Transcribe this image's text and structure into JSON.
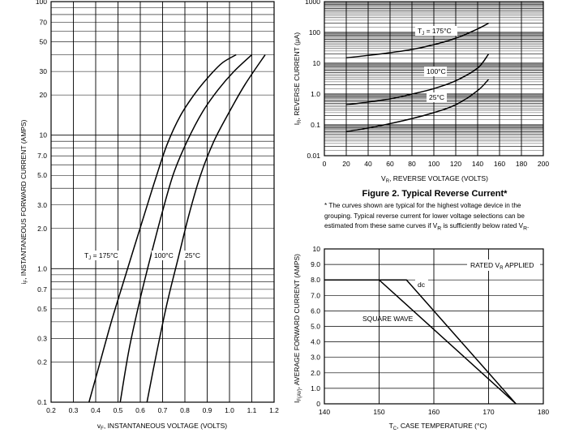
{
  "chart_data": [
    {
      "type": "line",
      "scale": "log-y",
      "title": "",
      "xlabel": "vF, INSTANTANEOUS VOLTAGE (VOLTS)",
      "ylabel": "iF, INSTANTANEOUS FORWARD CURRENT (AMPS)",
      "xlim": [
        0.2,
        1.2
      ],
      "ylim": [
        0.1,
        100
      ],
      "x_ticks": [
        "0.2",
        "0.3",
        "0.4",
        "0.5",
        "0.6",
        "0.7",
        "0.8",
        "0.9",
        "1.0",
        "1.1",
        "1.2"
      ],
      "y_ticks": [
        {
          "v": 100,
          "label": "100"
        },
        {
          "v": 70,
          "label": "70"
        },
        {
          "v": 50,
          "label": "50"
        },
        {
          "v": 30,
          "label": "30"
        },
        {
          "v": 20,
          "label": "20"
        },
        {
          "v": 10,
          "label": "10"
        },
        {
          "v": 7,
          "label": "7.0"
        },
        {
          "v": 5,
          "label": "5.0"
        },
        {
          "v": 3,
          "label": "3.0"
        },
        {
          "v": 2,
          "label": "2.0"
        },
        {
          "v": 1,
          "label": "1.0"
        },
        {
          "v": 0.7,
          "label": "0.7"
        },
        {
          "v": 0.5,
          "label": "0.5"
        },
        {
          "v": 0.3,
          "label": "0.3"
        },
        {
          "v": 0.2,
          "label": "0.2"
        },
        {
          "v": 0.1,
          "label": "0.1"
        }
      ],
      "series": [
        {
          "name": "TJ = 175°C",
          "x": [
            0.37,
            0.42,
            0.47,
            0.52,
            0.57,
            0.62,
            0.67,
            0.72,
            0.78,
            0.85,
            0.92,
            0.97,
            1.03
          ],
          "y": [
            0.1,
            0.2,
            0.4,
            0.75,
            1.4,
            2.6,
            4.8,
            8.5,
            14,
            21,
            29,
            35,
            40
          ]
        },
        {
          "name": "100°C",
          "x": [
            0.51,
            0.55,
            0.6,
            0.65,
            0.7,
            0.75,
            0.81,
            0.88,
            0.95,
            1.02,
            1.1
          ],
          "y": [
            0.1,
            0.25,
            0.6,
            1.3,
            2.7,
            5.2,
            9,
            15,
            22,
            30,
            40
          ]
        },
        {
          "name": "25°C",
          "x": [
            0.63,
            0.67,
            0.72,
            0.77,
            0.82,
            0.87,
            0.93,
            1.0,
            1.07,
            1.16
          ],
          "y": [
            0.1,
            0.22,
            0.55,
            1.2,
            2.6,
            5,
            9,
            15,
            24,
            40
          ]
        }
      ],
      "annotations": {
        "tj_label": "T",
        "tj_sub": "J",
        "tj_rest": " = 175°C",
        "mid": "100°C",
        "right": "25°C"
      }
    },
    {
      "type": "line",
      "scale": "log-y",
      "title": "Figure 2. Typical Reverse Current*",
      "xlabel": "VR, REVERSE VOLTAGE (VOLTS)",
      "ylabel": "IR, REVERSE CURRENT (μA)",
      "xlim": [
        0,
        200
      ],
      "ylim": [
        0.01,
        1000
      ],
      "x_ticks": [
        "0",
        "20",
        "40",
        "60",
        "80",
        "100",
        "120",
        "140",
        "160",
        "180",
        "200"
      ],
      "y_ticks": [
        {
          "v": 1000,
          "label": "1000"
        },
        {
          "v": 100,
          "label": "100"
        },
        {
          "v": 10,
          "label": "10"
        },
        {
          "v": 1,
          "label": "1.0"
        },
        {
          "v": 0.1,
          "label": "0.1"
        },
        {
          "v": 0.01,
          "label": "0.01"
        }
      ],
      "series": [
        {
          "name": "TJ = 175°C",
          "x": [
            20,
            40,
            60,
            80,
            100,
            120,
            140,
            150
          ],
          "y": [
            15,
            18,
            22,
            28,
            40,
            65,
            130,
            200
          ]
        },
        {
          "name": "100°C",
          "x": [
            20,
            40,
            60,
            80,
            100,
            120,
            140,
            150
          ],
          "y": [
            0.45,
            0.55,
            0.7,
            1.0,
            1.5,
            2.7,
            7,
            20
          ]
        },
        {
          "name": "25°C",
          "x": [
            20,
            40,
            60,
            80,
            100,
            120,
            140,
            150
          ],
          "y": [
            0.06,
            0.08,
            0.11,
            0.16,
            0.25,
            0.45,
            1.3,
            3.0
          ]
        }
      ],
      "annotations": {
        "tj_label": "T",
        "tj_sub": "J",
        "tj_rest": " = 175°C",
        "mid": "100°C",
        "low": "25°C"
      },
      "footnote": {
        "line1": "* The curves shown are typical for the highest voltage device in the",
        "line2": "grouping. Typical reverse current for lower voltage selections can be",
        "line3_a": "estimated from these same curves if V",
        "line3_sub": "R",
        "line3_b": " is sufficiently below rated V",
        "line3_sub2": "R",
        "line3_c": "."
      }
    },
    {
      "type": "line",
      "title": "",
      "xlabel": "TC, CASE TEMPERATURE (°C)",
      "ylabel": "IF(AV), AVERAGE FORWARD CURRENT (AMPS)",
      "xlim": [
        140,
        180
      ],
      "ylim": [
        0,
        10
      ],
      "x_ticks": [
        "140",
        "150",
        "160",
        "170",
        "180"
      ],
      "y_ticks": [
        {
          "v": 10,
          "label": "10"
        },
        {
          "v": 9,
          "label": "9.0"
        },
        {
          "v": 8,
          "label": "8.0"
        },
        {
          "v": 7,
          "label": "7.0"
        },
        {
          "v": 6,
          "label": "6.0"
        },
        {
          "v": 5,
          "label": "5.0"
        },
        {
          "v": 4,
          "label": "4.0"
        },
        {
          "v": 3,
          "label": "3.0"
        },
        {
          "v": 2,
          "label": "2.0"
        },
        {
          "v": 1,
          "label": "1.0"
        },
        {
          "v": 0,
          "label": "0"
        }
      ],
      "series": [
        {
          "name": "dc",
          "x": [
            140,
            155,
            175
          ],
          "y": [
            8,
            8,
            0
          ]
        },
        {
          "name": "SQUARE WAVE",
          "x": [
            140,
            150,
            175
          ],
          "y": [
            8,
            8,
            0
          ]
        }
      ],
      "annotations": {
        "rated": "RATED V",
        "rated_sub": "R",
        "rated_rest": " APPLIED",
        "dc": "dc",
        "square": "SQUARE WAVE"
      }
    }
  ]
}
